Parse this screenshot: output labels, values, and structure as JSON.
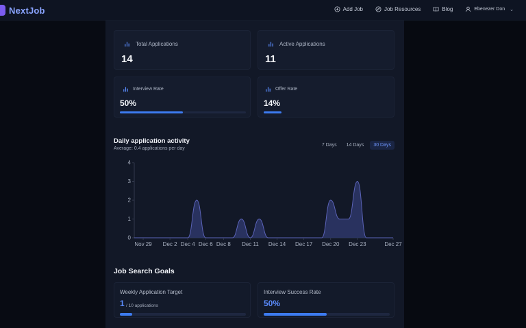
{
  "nav": {
    "brand": "NextJob",
    "links": [
      {
        "label": "Add Job",
        "icon": "plus-circle-icon"
      },
      {
        "label": "Job Resources",
        "icon": "compass-icon"
      },
      {
        "label": "Blog",
        "icon": "book-icon"
      }
    ],
    "user": {
      "name": "Ebenezer Don",
      "icon": "user-icon"
    }
  },
  "stats": {
    "total_applications": {
      "label": "Total Applications",
      "value": "14"
    },
    "active_applications": {
      "label": "Active Applications",
      "value": "11"
    },
    "interview_rate": {
      "label": "Interview Rate",
      "value": "50%",
      "progress": 0.5
    },
    "offer_rate": {
      "label": "Offer Rate",
      "value": "14%",
      "progress": 0.14
    }
  },
  "activity": {
    "title": "Daily application activity",
    "subtitle": "Average: 0.4 applications per day",
    "ranges": [
      "7 Days",
      "14 Days",
      "30 Days"
    ],
    "active_range": "30 Days"
  },
  "chart_data": {
    "type": "area",
    "title": "Daily application activity",
    "x_ticks": [
      "Nov 29",
      "Dec 2",
      "Dec 4",
      "Dec 6",
      "Dec 8",
      "Dec 11",
      "Dec 14",
      "Dec 17",
      "Dec 20",
      "Dec 23",
      "Dec 27"
    ],
    "y_ticks": [
      0,
      1,
      2,
      3,
      4
    ],
    "ylim": [
      0,
      4
    ],
    "x": [
      "Nov 28",
      "Nov 29",
      "Nov 30",
      "Dec 1",
      "Dec 2",
      "Dec 3",
      "Dec 4",
      "Dec 5",
      "Dec 6",
      "Dec 7",
      "Dec 8",
      "Dec 9",
      "Dec 10",
      "Dec 11",
      "Dec 12",
      "Dec 13",
      "Dec 14",
      "Dec 15",
      "Dec 16",
      "Dec 17",
      "Dec 18",
      "Dec 19",
      "Dec 20",
      "Dec 21",
      "Dec 22",
      "Dec 23",
      "Dec 24",
      "Dec 25",
      "Dec 26",
      "Dec 27"
    ],
    "values": [
      0,
      0,
      0,
      0,
      0,
      0,
      0,
      2,
      0,
      0,
      0,
      0,
      1,
      0,
      1,
      0,
      0,
      0,
      0,
      0,
      0,
      0,
      2,
      1,
      1,
      3,
      0,
      0,
      0,
      0
    ],
    "fill_color": "#2c3566",
    "line_color": "#5b63b8",
    "grid": false
  },
  "goals": {
    "title": "Job Search Goals",
    "weekly": {
      "label": "Weekly Application Target",
      "value": "1",
      "unit": "/ 10 applications",
      "progress": 0.1
    },
    "interview": {
      "label": "Interview Success Rate",
      "value": "50%",
      "progress": 0.5
    }
  },
  "colors": {
    "accent": "#3d7bf0",
    "brand": "#7b5cf0",
    "brand_text": "#8aa4ff"
  }
}
